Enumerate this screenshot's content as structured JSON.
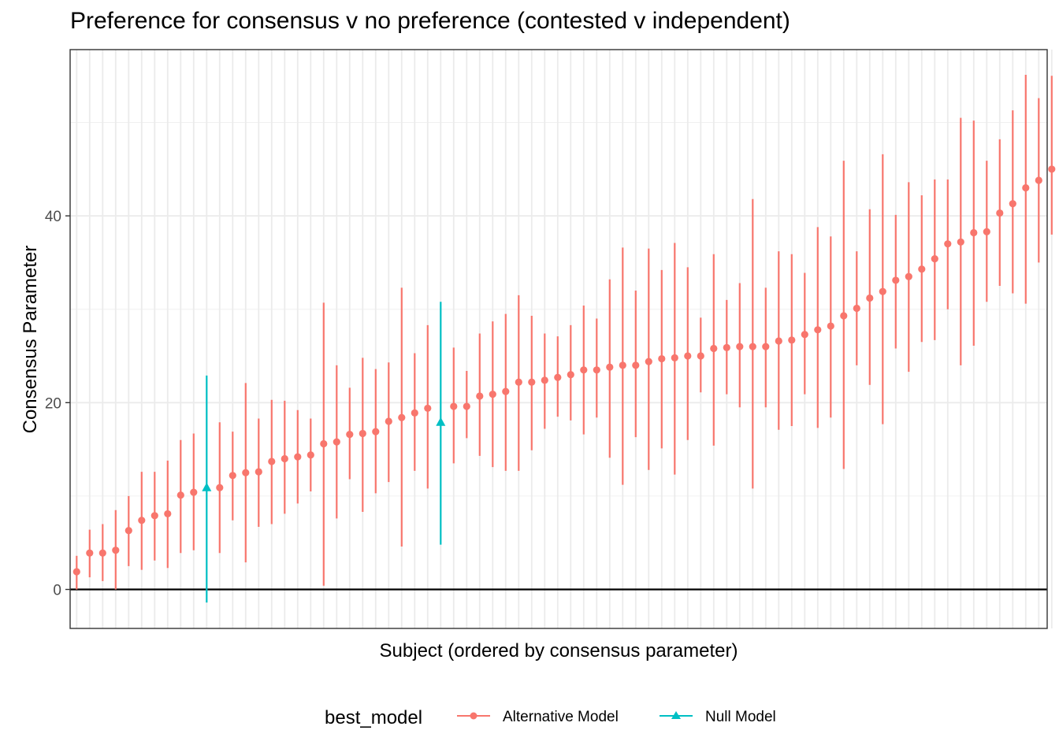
{
  "chart_data": {
    "type": "scatter",
    "title": "Preference for consensus v no preference (contested v independent)",
    "xlabel": "Subject (ordered by consensus parameter)",
    "ylabel": "Consensus Parameter",
    "ylim": [
      -2,
      72
    ],
    "yticks": [
      0,
      20,
      40
    ],
    "hline": 0,
    "grid": true,
    "legend": {
      "position": "bottom",
      "title": "best_model",
      "entries": [
        {
          "name": "Alternative Model",
          "color": "#F8766D",
          "shape": "circle"
        },
        {
          "name": "Null Model",
          "color": "#00BFC4",
          "shape": "triangle"
        }
      ]
    },
    "series": [
      {
        "name": "Alternative Model",
        "color": "#F8766D",
        "x": [
          1,
          2,
          3,
          4,
          5,
          6,
          7,
          8,
          9,
          10,
          12,
          13,
          14,
          15,
          16,
          17,
          18,
          19,
          20,
          21,
          22,
          23,
          24,
          25,
          26,
          27,
          28,
          30,
          31,
          32,
          33,
          34,
          35,
          36,
          37,
          38,
          39,
          40,
          41,
          42,
          43,
          44,
          45,
          46,
          47,
          48,
          49,
          50,
          51,
          52,
          53,
          54,
          55,
          56,
          57,
          58,
          59,
          60,
          61,
          62,
          63,
          64,
          65,
          66,
          67,
          68,
          69,
          70,
          71,
          72,
          73,
          74,
          75,
          76
        ],
        "y": [
          1.9,
          3.9,
          3.9,
          4.2,
          6.3,
          7.4,
          7.9,
          8.1,
          10.1,
          10.4,
          10.9,
          12.2,
          12.5,
          12.6,
          13.7,
          14.0,
          14.2,
          14.4,
          15.6,
          15.8,
          16.6,
          16.7,
          16.9,
          18.0,
          18.4,
          18.9,
          19.4,
          19.6,
          19.6,
          20.7,
          20.9,
          21.2,
          22.2,
          22.2,
          22.4,
          22.7,
          23.0,
          23.5,
          23.5,
          23.8,
          24.0,
          24.0,
          24.4,
          24.7,
          24.8,
          25.0,
          25.0,
          25.8,
          25.9,
          26.0,
          26.0,
          26.0,
          26.6,
          26.7,
          27.3,
          27.8,
          28.2,
          29.3,
          30.1,
          31.2,
          31.9,
          33.1,
          33.5,
          34.3,
          35.4,
          37.0,
          37.2,
          38.2,
          38.3,
          40.3,
          41.3,
          43.0,
          43.8,
          45.0
        ],
        "low": [
          0,
          1.3,
          0.9,
          0,
          2.5,
          2.1,
          3.1,
          2.3,
          3.9,
          4.2,
          3.9,
          7.4,
          2.9,
          6.7,
          7.0,
          8.1,
          9.2,
          10.5,
          0.4,
          7.6,
          11.8,
          8.3,
          10.3,
          11.5,
          4.6,
          12.7,
          10.8,
          13.5,
          16.2,
          14.3,
          13.1,
          12.7,
          12.7,
          14.9,
          17.2,
          18.5,
          18.1,
          16.6,
          18.4,
          14.1,
          11.2,
          16.3,
          12.8,
          15.1,
          12.3,
          16.0,
          21.1,
          15.4,
          20.9,
          19.5,
          10.8,
          19.5,
          17.1,
          17.5,
          20.9,
          17.3,
          18.4,
          12.9,
          24.0,
          21.9,
          17.7,
          25.8,
          23.3,
          26.5,
          26.7,
          30.0,
          24.0,
          26.1,
          30.8,
          32.5,
          31.7,
          30.6,
          35.0,
          38.0
        ],
        "high": [
          3.6,
          6.4,
          7.0,
          8.5,
          10.0,
          12.6,
          12.6,
          13.8,
          16.0,
          16.7,
          17.9,
          16.9,
          22.1,
          18.3,
          20.3,
          20.2,
          19.2,
          18.3,
          30.7,
          24.0,
          21.6,
          24.8,
          23.6,
          24.3,
          32.3,
          25.3,
          28.3,
          25.9,
          23.4,
          27.4,
          28.7,
          29.5,
          31.5,
          29.3,
          27.4,
          27.1,
          28.3,
          30.4,
          29.0,
          33.2,
          36.6,
          32.0,
          36.5,
          34.2,
          37.1,
          34.5,
          29.1,
          35.9,
          31.0,
          32.8,
          41.8,
          32.3,
          36.2,
          35.9,
          33.9,
          38.8,
          37.8,
          45.9,
          36.2,
          40.7,
          46.6,
          40.1,
          43.6,
          42.2,
          43.9,
          43.9,
          50.5,
          50.2,
          45.9,
          48.2,
          51.3,
          55.1,
          52.6,
          55.0
        ]
      },
      {
        "name": "Null Model",
        "color": "#00BFC4",
        "x": [
          11,
          29
        ],
        "y": [
          10.9,
          17.9
        ],
        "low": [
          -1.4,
          4.8
        ],
        "high": [
          22.9,
          30.8
        ]
      }
    ]
  }
}
